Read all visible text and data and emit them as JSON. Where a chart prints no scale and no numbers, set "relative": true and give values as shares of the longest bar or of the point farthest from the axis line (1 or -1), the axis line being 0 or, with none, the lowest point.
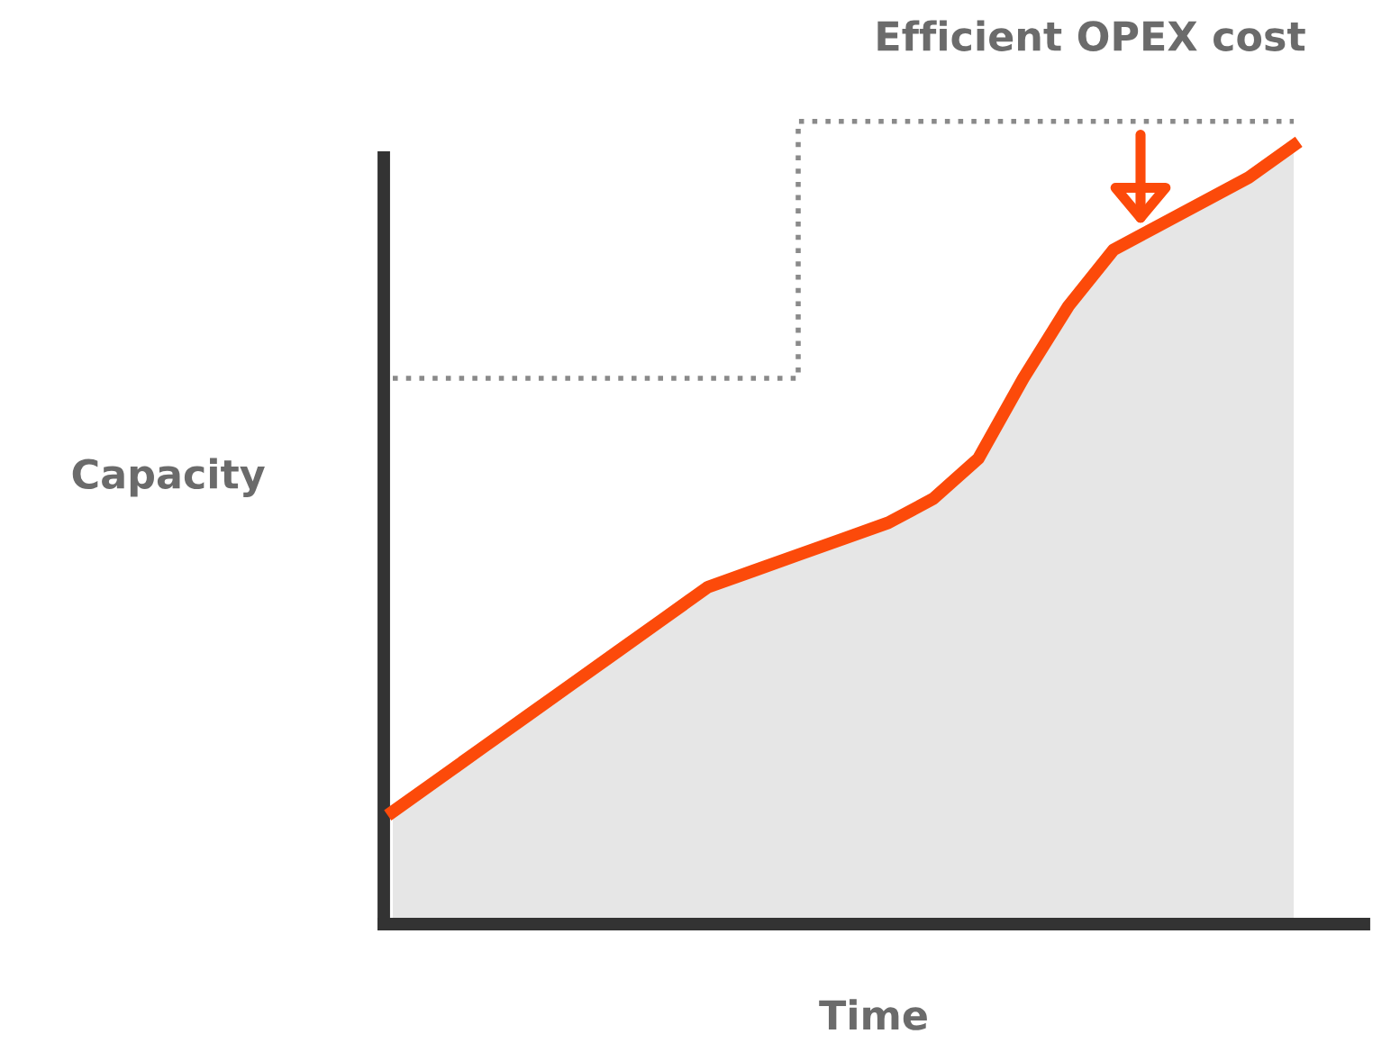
{
  "chart_data": {
    "type": "area",
    "relative": true,
    "title": "Efficient OPEX cost",
    "xlabel": "Time",
    "ylabel": "Capacity",
    "categories": [
      null,
      null,
      null,
      null,
      null,
      null,
      null,
      null,
      null,
      null,
      null,
      null,
      null,
      null,
      null,
      null,
      null,
      null,
      null,
      null,
      null
    ],
    "series": [
      {
        "color": "#fc4a0a",
        "values": [
          0.14,
          0.18,
          0.22,
          0.26,
          0.3,
          0.34,
          0.38,
          0.42,
          0.44,
          0.46,
          0.48,
          0.5,
          0.53,
          0.58,
          0.68,
          0.77,
          0.84,
          0.87,
          0.9,
          0.93,
          0.97
        ]
      },
      {
        "type": "step",
        "color": "#8a8a8a",
        "line_style": "dotted",
        "values": [
          0.68,
          0.68,
          0.68,
          0.68,
          0.68,
          0.68,
          0.68,
          0.68,
          0.68,
          1.0,
          1.0,
          1.0,
          1.0,
          1.0,
          1.0,
          1.0,
          1.0,
          1.0,
          1.0,
          1.0,
          1.0
        ]
      }
    ],
    "legend": false
  }
}
